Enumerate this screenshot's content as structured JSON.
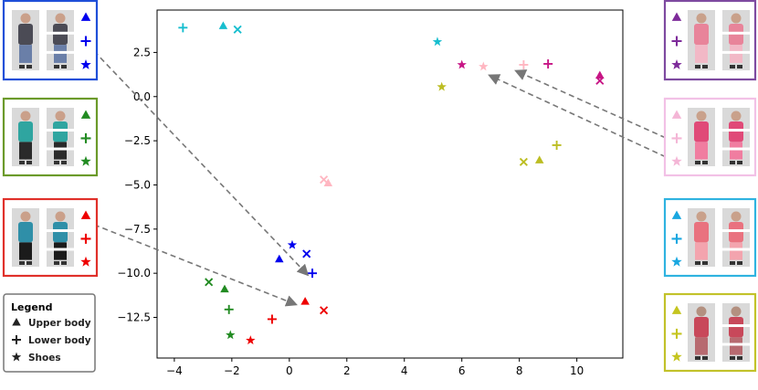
{
  "chart_data": {
    "type": "scatter",
    "title": "",
    "xlabel": "",
    "ylabel": "",
    "xlim": [
      -4.6,
      11.6
    ],
    "ylim": [
      -14.8,
      4.9
    ],
    "x_ticks": [
      -4,
      -2,
      0,
      2,
      4,
      6,
      8,
      10
    ],
    "y_ticks": [
      2.5,
      0.0,
      -2.5,
      -5.0,
      -7.5,
      -10.0,
      -12.5
    ],
    "x_tick_labels": [
      "−4",
      "−2",
      "0",
      "2",
      "4",
      "6",
      "8",
      "10"
    ],
    "y_tick_labels": [
      "2.5",
      "0.0",
      "−2.5",
      "−5.0",
      "−7.5",
      "−10.0",
      "−12.5"
    ],
    "grid": false,
    "points": [
      {
        "x": -3.7,
        "y": 3.9,
        "marker": "plus",
        "color": "#17becf"
      },
      {
        "x": -2.3,
        "y": 4.0,
        "marker": "triangle",
        "color": "#17becf"
      },
      {
        "x": -1.8,
        "y": 3.8,
        "marker": "x",
        "color": "#17becf"
      },
      {
        "x": 5.15,
        "y": 3.1,
        "marker": "star",
        "color": "#17becf"
      },
      {
        "x": 6.0,
        "y": 1.8,
        "marker": "star",
        "color": "#c71585"
      },
      {
        "x": 6.75,
        "y": 1.7,
        "marker": "star",
        "color": "#ffb6c1"
      },
      {
        "x": 8.15,
        "y": 1.8,
        "marker": "plus",
        "color": "#ffb6c1"
      },
      {
        "x": 9.0,
        "y": 1.85,
        "marker": "plus",
        "color": "#c71585"
      },
      {
        "x": 10.8,
        "y": 1.2,
        "marker": "triangle",
        "color": "#c71585"
      },
      {
        "x": 10.8,
        "y": 0.9,
        "marker": "x",
        "color": "#c71585"
      },
      {
        "x": 5.3,
        "y": 0.55,
        "marker": "star",
        "color": "#bcbd22"
      },
      {
        "x": 9.3,
        "y": -2.75,
        "marker": "plus",
        "color": "#bcbd22"
      },
      {
        "x": 8.15,
        "y": -3.7,
        "marker": "x",
        "color": "#bcbd22"
      },
      {
        "x": 8.7,
        "y": -3.6,
        "marker": "triangle",
        "color": "#bcbd22"
      },
      {
        "x": 1.2,
        "y": -4.7,
        "marker": "x",
        "color": "#ffb6c1"
      },
      {
        "x": 1.35,
        "y": -4.9,
        "marker": "triangle",
        "color": "#ffb6c1"
      },
      {
        "x": 0.1,
        "y": -8.4,
        "marker": "star",
        "color": "#0000ee"
      },
      {
        "x": 0.6,
        "y": -8.9,
        "marker": "x",
        "color": "#0000ee"
      },
      {
        "x": -0.35,
        "y": -9.2,
        "marker": "triangle",
        "color": "#0000ee"
      },
      {
        "x": 0.8,
        "y": -10.0,
        "marker": "plus",
        "color": "#0000ee"
      },
      {
        "x": -2.8,
        "y": -10.5,
        "marker": "x",
        "color": "#228b22"
      },
      {
        "x": -2.25,
        "y": -10.9,
        "marker": "triangle",
        "color": "#228b22"
      },
      {
        "x": -2.1,
        "y": -12.05,
        "marker": "plus",
        "color": "#228b22"
      },
      {
        "x": -2.05,
        "y": -13.5,
        "marker": "star",
        "color": "#228b22"
      },
      {
        "x": 0.55,
        "y": -11.6,
        "marker": "triangle",
        "color": "#ee0000"
      },
      {
        "x": 1.2,
        "y": -12.1,
        "marker": "x",
        "color": "#ee0000"
      },
      {
        "x": -0.6,
        "y": -12.6,
        "marker": "plus",
        "color": "#ee0000"
      },
      {
        "x": -1.35,
        "y": -13.8,
        "marker": "star",
        "color": "#ee0000"
      }
    ]
  },
  "legend": {
    "title": "Legend",
    "items": [
      {
        "marker": "triangle",
        "label": "Upper body"
      },
      {
        "marker": "plus",
        "label": "Lower body"
      },
      {
        "marker": "star",
        "label": "Shoes"
      }
    ]
  },
  "panels": [
    {
      "name": "blue",
      "color": "#1f4fd8",
      "marker_color": "#0000ee"
    },
    {
      "name": "green",
      "color": "#6b9a2a",
      "marker_color": "#228b22"
    },
    {
      "name": "red",
      "color": "#e0302a",
      "marker_color": "#ee0000"
    },
    {
      "name": "purple",
      "color": "#7e4aa0",
      "marker_color": "#7e2b9a"
    },
    {
      "name": "pink",
      "color": "#f2c1e6",
      "marker_color": "#f4b6d6"
    },
    {
      "name": "cyan",
      "color": "#2fb3e0",
      "marker_color": "#19a7e0"
    },
    {
      "name": "olive",
      "color": "#c2c22a",
      "marker_color": "#c5c51f"
    }
  ]
}
